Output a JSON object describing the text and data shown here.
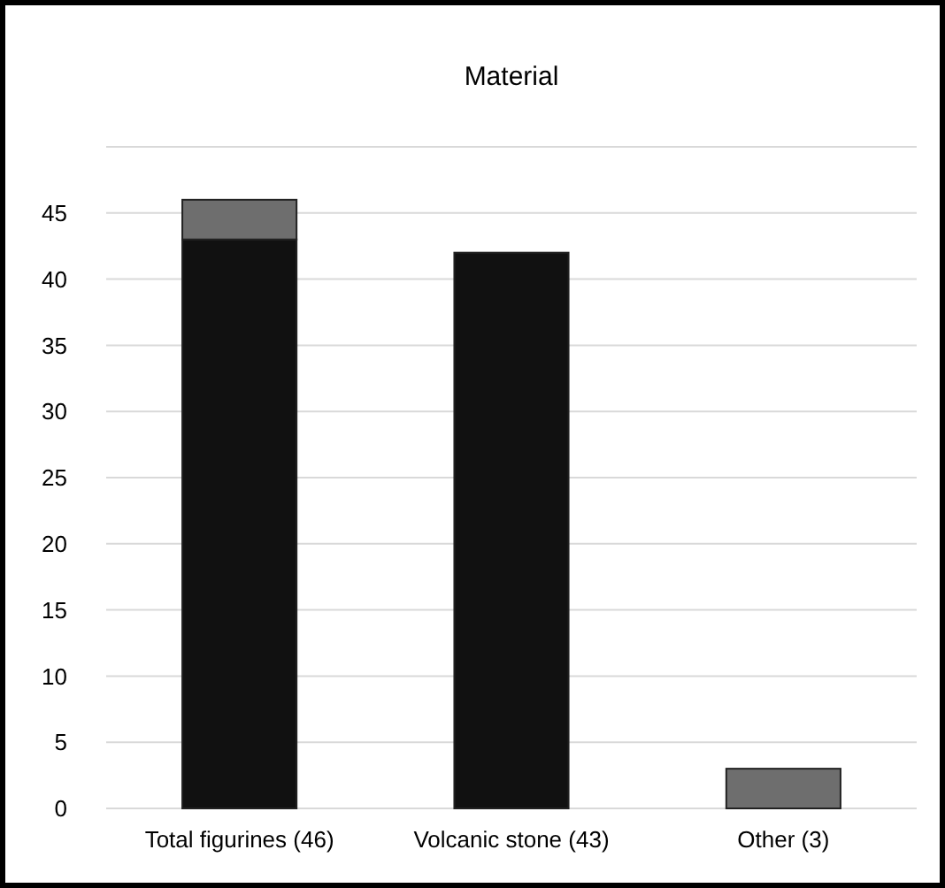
{
  "chart_data": {
    "type": "bar",
    "title": "Material",
    "stacked": true,
    "categories": [
      "Total figurines (46)",
      "Volcanic stone (43)",
      "Other (3)"
    ],
    "series": [
      {
        "color": "#111111",
        "values": [
          43,
          42,
          0
        ]
      },
      {
        "color": "#6e6e6e",
        "values": [
          3,
          0,
          3
        ]
      }
    ],
    "ylim": [
      0,
      50
    ],
    "yticks": [
      0,
      5,
      10,
      15,
      20,
      25,
      30,
      35,
      40,
      45,
      {
        "value": 50,
        "label": null
      }
    ],
    "grid": "y"
  }
}
